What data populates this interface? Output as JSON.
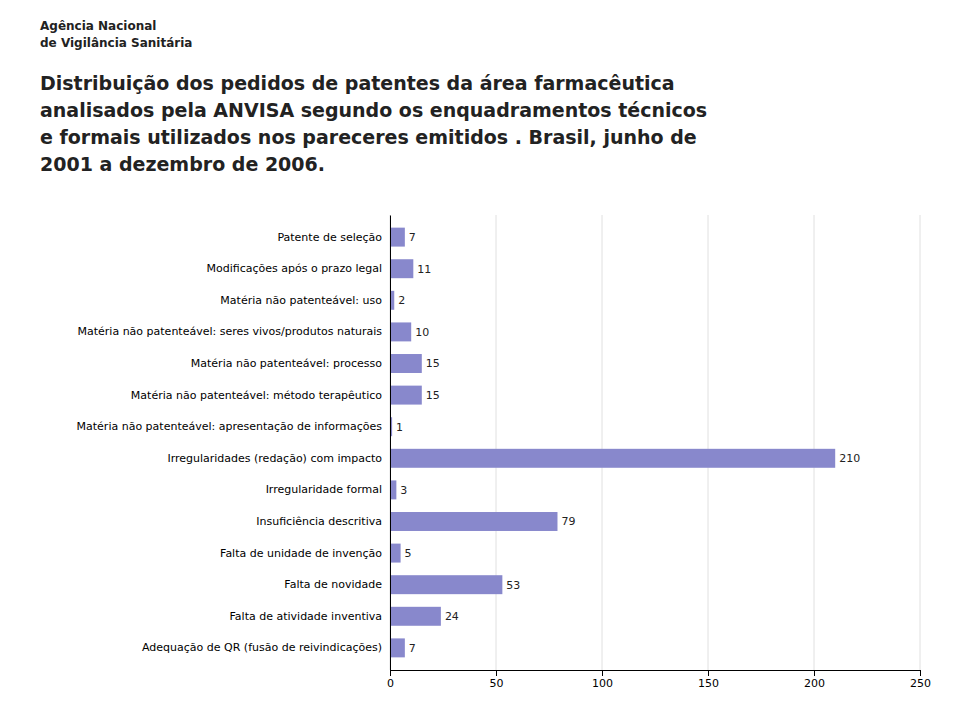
{
  "chart_data": {
    "type": "bar",
    "orientation": "horizontal",
    "title": [
      "Distribuição dos pedidos de patentes da área farmacêutica",
      "analisados pela ANVISA segundo os enquadramentos técnicos",
      "e formais utilizados nos pareceres emitidos . Brasil, junho de",
      "2001 a dezembro de 2006."
    ],
    "annotations": [
      "Agência Nacional",
      "de Vigilância Sanitária"
    ],
    "categories": [
      "Patente de seleção",
      "Modificações após o prazo legal",
      "Matéria não patenteável: uso",
      "Matéria não patenteável: seres vivos/produtos naturais",
      "Matéria não patenteável: processo",
      "Matéria não patenteável: método terapêutico",
      "Matéria não patenteável: apresentação de informações",
      "Irregularidades (redação) com impacto",
      "Irregularidade formal",
      "Insuficiência descritiva",
      "Falta de unidade de invenção",
      "Falta de novidade",
      "Falta de atividade inventiva",
      "Adequação de QR (fusão de reivindicações)"
    ],
    "values": [
      7,
      11,
      2,
      10,
      15,
      15,
      1,
      210,
      3,
      79,
      5,
      53,
      24,
      7
    ],
    "color": "#8888cc",
    "xlim": [
      0,
      250
    ],
    "xticks": [
      0,
      50,
      100,
      150,
      200,
      250
    ],
    "grid": true,
    "data_labels": true
  }
}
